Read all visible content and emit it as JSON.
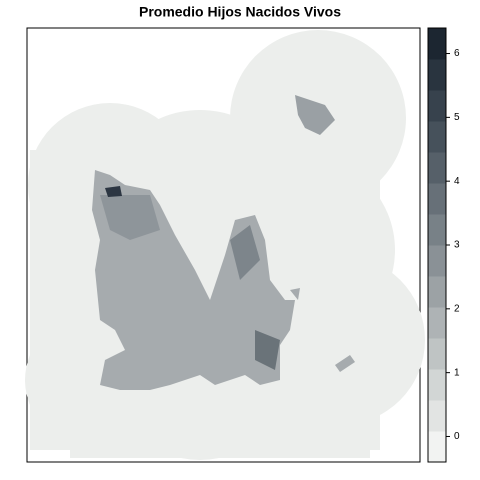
{
  "title": "Promedio Hijos Nacidos Vivos",
  "legend": {
    "range": [
      -0.4,
      6.4
    ],
    "ticks": [
      0,
      1,
      2,
      3,
      4,
      5,
      6
    ],
    "colors": [
      "#f2f3f2",
      "#e2e4e3",
      "#d2d6d5",
      "#bfc4c4",
      "#aeb3b5",
      "#9ca2a5",
      "#8a9196",
      "#788187",
      "#677078",
      "#566069",
      "#46515b",
      "#37424d",
      "#29343f",
      "#1c2631"
    ]
  }
}
